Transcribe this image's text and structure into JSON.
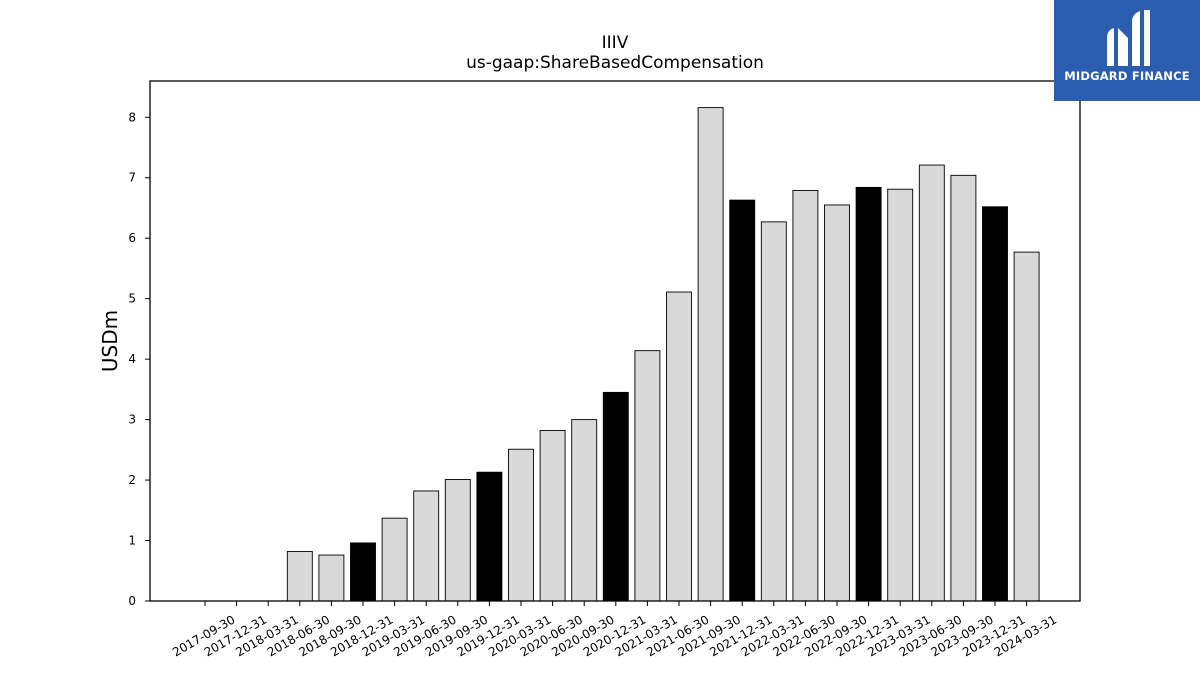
{
  "brand": {
    "name": "MIDGARD FINANCE",
    "color": "#2a5db0"
  },
  "chart_data": {
    "type": "bar",
    "title": "IIIV",
    "subtitle": "us-gaap:ShareBasedCompensation",
    "xlabel": "",
    "ylabel": "USDm",
    "ylim": [
      0,
      8.6
    ],
    "yticks": [
      0,
      1,
      2,
      3,
      4,
      5,
      6,
      7,
      8
    ],
    "grid": false,
    "categories": [
      "2017-09-30",
      "2017-12-31",
      "2018-03-31",
      "2018-06-30",
      "2018-09-30",
      "2018-12-31",
      "2019-03-31",
      "2019-06-30",
      "2019-09-30",
      "2019-12-31",
      "2020-03-31",
      "2020-06-30",
      "2020-09-30",
      "2020-12-31",
      "2021-03-31",
      "2021-06-30",
      "2021-09-30",
      "2021-12-31",
      "2022-03-31",
      "2022-06-30",
      "2022-09-30",
      "2022-12-31",
      "2023-03-31",
      "2023-06-30",
      "2023-09-30",
      "2023-12-31",
      "2024-03-31"
    ],
    "values": [
      0,
      0,
      0,
      0.82,
      0.76,
      0.96,
      1.37,
      1.82,
      2.01,
      2.13,
      2.51,
      2.82,
      3.0,
      3.45,
      4.14,
      5.11,
      8.16,
      6.63,
      6.27,
      6.79,
      6.55,
      6.84,
      6.81,
      7.21,
      7.04,
      6.52,
      5.77
    ],
    "bar_colors": {
      "quarter": "#d9d9d9",
      "fiscal_year_end": "#000000",
      "edge": "#000000"
    },
    "fiscal_year_end_indices": [
      5,
      9,
      13,
      17,
      21,
      25
    ]
  }
}
